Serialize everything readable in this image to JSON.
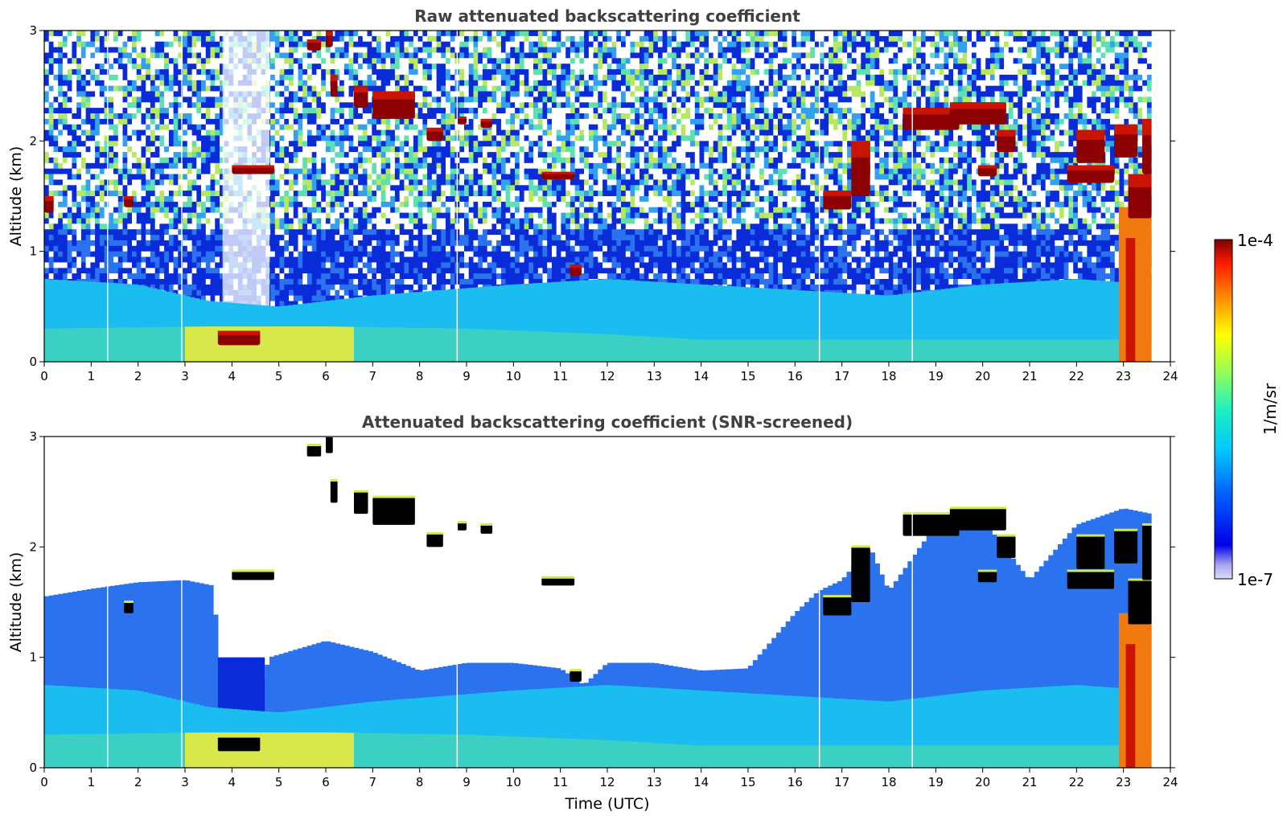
{
  "chart_data": [
    {
      "type": "heatmap",
      "title": "Raw attenuated backscattering coefficient",
      "xlabel": "",
      "ylabel": "Altitude (km)",
      "xlim": [
        0,
        24
      ],
      "ylim": [
        0,
        3
      ],
      "xticks": [
        "0",
        "1",
        "2",
        "3",
        "4",
        "5",
        "6",
        "7",
        "8",
        "9",
        "10",
        "11",
        "12",
        "13",
        "14",
        "15",
        "16",
        "17",
        "18",
        "19",
        "20",
        "21",
        "22",
        "23",
        "24"
      ],
      "yticks": [
        "0",
        "1",
        "2",
        "3"
      ],
      "data_end_time": 23.6,
      "gap_times": [
        1.35,
        2.93,
        8.8,
        16.52,
        18.5
      ],
      "boundary_layer_top_km": [
        [
          0,
          0.75
        ],
        [
          2,
          0.7
        ],
        [
          3.5,
          0.55
        ],
        [
          5,
          0.5
        ],
        [
          7,
          0.6
        ],
        [
          10,
          0.7
        ],
        [
          12,
          0.75
        ],
        [
          14,
          0.7
        ],
        [
          16,
          0.65
        ],
        [
          18,
          0.6
        ],
        [
          20,
          0.7
        ],
        [
          22,
          0.75
        ],
        [
          23.6,
          0.7
        ]
      ],
      "surface_layer_top_km": [
        [
          0,
          0.3
        ],
        [
          3.5,
          0.32
        ],
        [
          6,
          0.32
        ],
        [
          9,
          0.3
        ],
        [
          12,
          0.25
        ],
        [
          14,
          0.2
        ],
        [
          16,
          0.2
        ],
        [
          23.6,
          0.2
        ]
      ],
      "noise_dropout_region": {
        "x": [
          3.8,
          4.8
        ],
        "y": [
          0.3,
          3
        ]
      },
      "clouds": [
        {
          "t0": 0.0,
          "t1": 0.2,
          "z0": 1.35,
          "z1": 1.5
        },
        {
          "t0": 1.7,
          "t1": 1.9,
          "z0": 1.4,
          "z1": 1.5
        },
        {
          "t0": 3.7,
          "t1": 4.6,
          "z0": 0.15,
          "z1": 0.28
        },
        {
          "t0": 4.0,
          "t1": 4.9,
          "z0": 1.7,
          "z1": 1.78
        },
        {
          "t0": 5.6,
          "t1": 5.9,
          "z0": 2.82,
          "z1": 2.92
        },
        {
          "t0": 6.0,
          "t1": 6.15,
          "z0": 2.85,
          "z1": 3.0
        },
        {
          "t0": 6.1,
          "t1": 6.25,
          "z0": 2.4,
          "z1": 2.6
        },
        {
          "t0": 6.6,
          "t1": 6.9,
          "z0": 2.3,
          "z1": 2.5
        },
        {
          "t0": 7.0,
          "t1": 7.9,
          "z0": 2.2,
          "z1": 2.45
        },
        {
          "t0": 8.15,
          "t1": 8.5,
          "z0": 2.0,
          "z1": 2.12
        },
        {
          "t0": 8.8,
          "t1": 9.0,
          "z0": 2.15,
          "z1": 2.22
        },
        {
          "t0": 9.3,
          "t1": 9.55,
          "z0": 2.12,
          "z1": 2.2
        },
        {
          "t0": 10.6,
          "t1": 11.3,
          "z0": 1.65,
          "z1": 1.72
        },
        {
          "t0": 11.2,
          "t1": 11.45,
          "z0": 0.78,
          "z1": 0.88
        },
        {
          "t0": 16.6,
          "t1": 17.2,
          "z0": 1.38,
          "z1": 1.55
        },
        {
          "t0": 17.2,
          "t1": 17.6,
          "z0": 1.5,
          "z1": 2.0
        },
        {
          "t0": 18.3,
          "t1": 19.5,
          "z0": 2.1,
          "z1": 2.3
        },
        {
          "t0": 19.3,
          "t1": 20.5,
          "z0": 2.15,
          "z1": 2.35
        },
        {
          "t0": 19.9,
          "t1": 20.3,
          "z0": 1.68,
          "z1": 1.78
        },
        {
          "t0": 20.3,
          "t1": 20.7,
          "z0": 1.9,
          "z1": 2.1
        },
        {
          "t0": 21.8,
          "t1": 22.8,
          "z0": 1.62,
          "z1": 1.78
        },
        {
          "t0": 22.0,
          "t1": 22.6,
          "z0": 1.8,
          "z1": 2.1
        },
        {
          "t0": 22.8,
          "t1": 23.3,
          "z0": 1.85,
          "z1": 2.15
        },
        {
          "t0": 23.1,
          "t1": 23.6,
          "z0": 1.3,
          "z1": 1.7
        },
        {
          "t0": 23.4,
          "t1": 23.6,
          "z0": 1.7,
          "z1": 2.2
        }
      ],
      "rain_column": {
        "t0": 22.9,
        "t1": 23.6,
        "z0": 0.0,
        "z1": 1.4
      }
    },
    {
      "type": "heatmap",
      "title": "Attenuated backscattering coefficient (SNR-screened)",
      "xlabel": "Time (UTC)",
      "ylabel": "Altitude (km)",
      "xlim": [
        0,
        24
      ],
      "ylim": [
        0,
        3
      ],
      "xticks": [
        "0",
        "1",
        "2",
        "3",
        "4",
        "5",
        "6",
        "7",
        "8",
        "9",
        "10",
        "11",
        "12",
        "13",
        "14",
        "15",
        "16",
        "17",
        "18",
        "19",
        "20",
        "21",
        "22",
        "23",
        "24"
      ],
      "yticks": [
        "0",
        "1",
        "2",
        "3"
      ],
      "data_end_time": 23.6,
      "gap_times": [
        1.35,
        2.93,
        8.8,
        16.52,
        18.5
      ],
      "screen_top_km": [
        [
          0,
          1.55
        ],
        [
          1,
          1.62
        ],
        [
          2,
          1.68
        ],
        [
          3,
          1.7
        ],
        [
          3.6,
          1.65
        ],
        [
          3.8,
          0.6
        ],
        [
          4.1,
          0.35
        ],
        [
          4.5,
          0.6
        ],
        [
          4.8,
          1.0
        ],
        [
          6,
          1.15
        ],
        [
          7,
          1.05
        ],
        [
          8,
          0.88
        ],
        [
          9,
          0.95
        ],
        [
          10,
          0.95
        ],
        [
          11,
          0.9
        ],
        [
          11.5,
          0.75
        ],
        [
          12,
          0.95
        ],
        [
          13,
          0.95
        ],
        [
          14,
          0.88
        ],
        [
          15,
          0.9
        ],
        [
          16,
          1.4
        ],
        [
          16.5,
          1.6
        ],
        [
          17,
          1.7
        ],
        [
          17.6,
          2.0
        ],
        [
          18,
          1.6
        ],
        [
          19,
          2.2
        ],
        [
          20,
          2.25
        ],
        [
          21,
          1.7
        ],
        [
          22,
          2.2
        ],
        [
          23,
          2.35
        ],
        [
          23.6,
          2.3
        ]
      ],
      "weak_layer_top_km": [
        [
          0,
          0.75
        ],
        [
          2,
          0.7
        ],
        [
          3.5,
          0.55
        ],
        [
          5,
          0.5
        ],
        [
          7,
          0.6
        ],
        [
          10,
          0.7
        ],
        [
          12,
          0.75
        ],
        [
          14,
          0.7
        ],
        [
          16,
          0.65
        ],
        [
          18,
          0.6
        ],
        [
          20,
          0.7
        ],
        [
          22,
          0.75
        ],
        [
          23.6,
          0.7
        ]
      ],
      "surface_layer_top_km": [
        [
          0,
          0.3
        ],
        [
          3.5,
          0.32
        ],
        [
          6,
          0.32
        ],
        [
          9,
          0.3
        ],
        [
          12,
          0.25
        ],
        [
          14,
          0.2
        ],
        [
          16,
          0.2
        ],
        [
          23.6,
          0.2
        ]
      ],
      "clouds": [
        {
          "t0": 1.7,
          "t1": 1.9,
          "z0": 1.4,
          "z1": 1.5
        },
        {
          "t0": 3.7,
          "t1": 4.6,
          "z0": 0.15,
          "z1": 0.28
        },
        {
          "t0": 4.0,
          "t1": 4.9,
          "z0": 1.7,
          "z1": 1.78
        },
        {
          "t0": 5.6,
          "t1": 5.9,
          "z0": 2.82,
          "z1": 2.92
        },
        {
          "t0": 6.0,
          "t1": 6.15,
          "z0": 2.85,
          "z1": 3.0
        },
        {
          "t0": 6.1,
          "t1": 6.25,
          "z0": 2.4,
          "z1": 2.6
        },
        {
          "t0": 6.6,
          "t1": 6.9,
          "z0": 2.3,
          "z1": 2.5
        },
        {
          "t0": 7.0,
          "t1": 7.9,
          "z0": 2.2,
          "z1": 2.45
        },
        {
          "t0": 8.15,
          "t1": 8.5,
          "z0": 2.0,
          "z1": 2.12
        },
        {
          "t0": 8.8,
          "t1": 9.0,
          "z0": 2.15,
          "z1": 2.22
        },
        {
          "t0": 9.3,
          "t1": 9.55,
          "z0": 2.12,
          "z1": 2.2
        },
        {
          "t0": 10.6,
          "t1": 11.3,
          "z0": 1.65,
          "z1": 1.72
        },
        {
          "t0": 11.2,
          "t1": 11.45,
          "z0": 0.78,
          "z1": 0.88
        },
        {
          "t0": 16.6,
          "t1": 17.2,
          "z0": 1.38,
          "z1": 1.55
        },
        {
          "t0": 17.2,
          "t1": 17.6,
          "z0": 1.5,
          "z1": 2.0
        },
        {
          "t0": 18.3,
          "t1": 19.5,
          "z0": 2.1,
          "z1": 2.3
        },
        {
          "t0": 19.3,
          "t1": 20.5,
          "z0": 2.15,
          "z1": 2.35
        },
        {
          "t0": 19.9,
          "t1": 20.3,
          "z0": 1.68,
          "z1": 1.78
        },
        {
          "t0": 20.3,
          "t1": 20.7,
          "z0": 1.9,
          "z1": 2.1
        },
        {
          "t0": 21.8,
          "t1": 22.8,
          "z0": 1.62,
          "z1": 1.78
        },
        {
          "t0": 22.0,
          "t1": 22.6,
          "z0": 1.8,
          "z1": 2.1
        },
        {
          "t0": 22.8,
          "t1": 23.3,
          "z0": 1.85,
          "z1": 2.15
        },
        {
          "t0": 23.1,
          "t1": 23.6,
          "z0": 1.3,
          "z1": 1.7
        },
        {
          "t0": 23.4,
          "t1": 23.6,
          "z0": 1.7,
          "z1": 2.2
        }
      ],
      "rain_column": {
        "t0": 22.9,
        "t1": 23.6,
        "z0": 0.0,
        "z1": 1.4
      }
    }
  ],
  "colorbar": {
    "label": "1/m/sr",
    "max_label": "1e-4",
    "min_label": "1e-7",
    "scale": "log",
    "colormap": "jet",
    "range": [
      1e-07,
      0.0001
    ]
  },
  "colors": {
    "noise_blue": "#0a2bd8",
    "background_blue": "#2a72ee",
    "boundary_layer": "#1bbdf0",
    "surface_layer": "#3cd0c4",
    "aerosol_yellow": "#d8e84a",
    "cloud_dark_red": "#8b0000",
    "cloud_red": "#c81400",
    "screened_cloud": "#000000",
    "rain_orange": "#f07a10"
  }
}
